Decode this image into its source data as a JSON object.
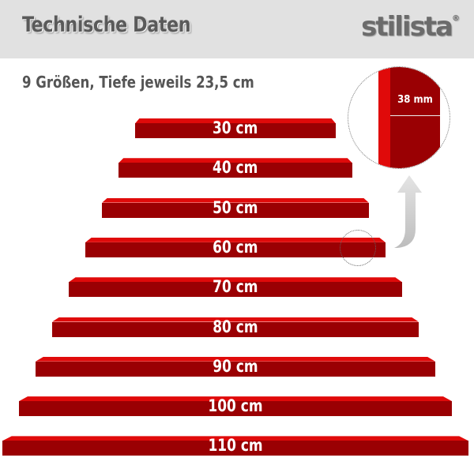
{
  "header": {
    "title": "Technische Daten",
    "logo": "stilista",
    "logo_mark": "®"
  },
  "subtitle": "9 Größen, Tiefe jeweils 23,5 cm",
  "detail": {
    "thickness_label": "38 mm"
  },
  "shelves": [
    {
      "label": "30 cm",
      "length_cm": 30
    },
    {
      "label": "40 cm",
      "length_cm": 40
    },
    {
      "label": "50 cm",
      "length_cm": 50
    },
    {
      "label": "60 cm",
      "length_cm": 60
    },
    {
      "label": "70 cm",
      "length_cm": 70
    },
    {
      "label": "80 cm",
      "length_cm": 80
    },
    {
      "label": "90 cm",
      "length_cm": 90
    },
    {
      "label": "100 cm",
      "length_cm": 100
    },
    {
      "label": "110 cm",
      "length_cm": 110
    }
  ],
  "colors": {
    "shelf_top": "#e00a0a",
    "shelf_body": "#9a0003",
    "header_bg": "#e1e1e1"
  }
}
